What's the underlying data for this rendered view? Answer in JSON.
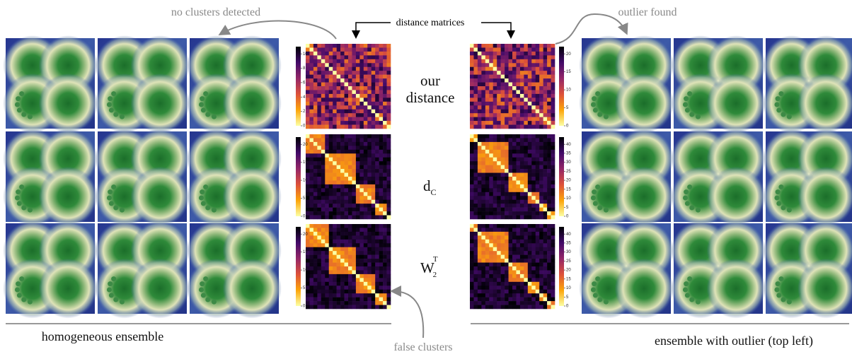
{
  "annotations": {
    "no_clusters": "no clusters detected",
    "distance_matrices": "distance matrices",
    "outlier_found": "outlier found",
    "false_clusters": "false clusters"
  },
  "row_labels": [
    {
      "lines": [
        "our",
        "distance"
      ]
    },
    {
      "base": "d",
      "sub": "C"
    },
    {
      "base": "W",
      "sub": "2",
      "sup": "T"
    }
  ],
  "captions": {
    "left": "homogeneous ensemble",
    "right": "ensemble with outlier (top left)"
  },
  "colorbars": {
    "left": [
      [
        0,
        2,
        4,
        6,
        8,
        10
      ],
      [
        0,
        5,
        10,
        15,
        20
      ],
      [
        0,
        5,
        10,
        15,
        20
      ]
    ],
    "right": [
      [
        0,
        5,
        10,
        15,
        20
      ],
      [
        0,
        5,
        10,
        15,
        20,
        25,
        30,
        35,
        40
      ],
      [
        0,
        5,
        10,
        15,
        20,
        25,
        30,
        35,
        40
      ]
    ]
  }
}
